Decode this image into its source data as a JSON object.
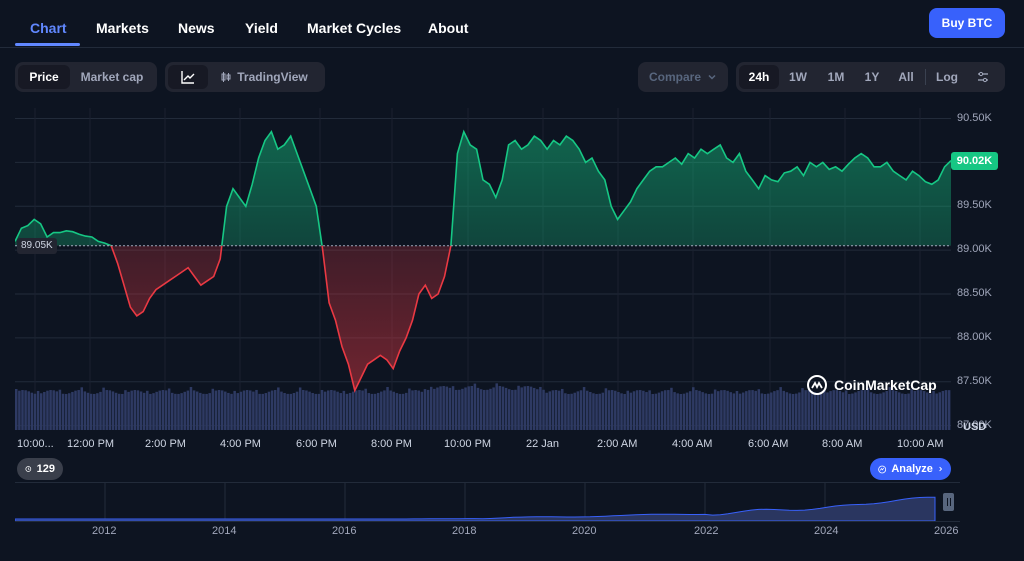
{
  "tabs": [
    {
      "label": "Chart",
      "active": true
    },
    {
      "label": "Markets",
      "active": false
    },
    {
      "label": "News",
      "active": false
    },
    {
      "label": "Yield",
      "active": false
    },
    {
      "label": "Market Cycles",
      "active": false
    },
    {
      "label": "About",
      "active": false
    }
  ],
  "buy_button": "Buy BTC",
  "type_toggle": {
    "price": "Price",
    "market_cap": "Market cap",
    "active": "Price"
  },
  "view_toggle": {
    "line_icon": "line-chart-icon",
    "tradingview": "TradingView",
    "tradingview_icon": "candlestick-icon"
  },
  "compare": {
    "label": "Compare",
    "icon": "chevron-down-icon"
  },
  "ranges": {
    "items": [
      "24h",
      "1W",
      "1M",
      "1Y",
      "All"
    ],
    "active": "24h",
    "log": "Log",
    "settings_icon": "sliders-icon"
  },
  "chart_data": {
    "type": "area",
    "title": "",
    "currency": "USD",
    "baseline": 89050,
    "baseline_label": "89.05K",
    "current": 90020,
    "current_label": "90.02K",
    "ylim": [
      86950,
      90620
    ],
    "y_ticks": [
      "90.50K",
      "90.00K",
      "89.50K",
      "89.00K",
      "88.50K",
      "88.00K",
      "87.50K",
      "87.00K"
    ],
    "x_ticks": [
      "10:00...",
      "12:00 PM",
      "2:00 PM",
      "4:00 PM",
      "6:00 PM",
      "8:00 PM",
      "10:00 PM",
      "22 Jan",
      "2:00 AM",
      "4:00 AM",
      "6:00 AM",
      "8:00 AM",
      "10:00 AM"
    ],
    "colors": {
      "up": "#16c784",
      "down": "#ea3943",
      "volume": "#2e3a63"
    },
    "series": [
      {
        "values": [
          89100,
          89250,
          89280,
          89350,
          89300,
          89150,
          89200,
          89200,
          89220,
          89210,
          89180,
          89160,
          89150,
          89100,
          89080,
          89050,
          88850,
          88600,
          88350,
          88250,
          88300,
          88450,
          88550,
          88600,
          88650,
          88700,
          88750,
          88800,
          88700,
          88600,
          88650,
          88700,
          88900,
          89500,
          89700,
          89600,
          89500,
          89750,
          90050,
          90250,
          90350,
          90150,
          90200,
          90300,
          90100,
          89900,
          89700,
          89500,
          89000,
          88400,
          88200,
          87900,
          87700,
          87400,
          87550,
          87700,
          87750,
          87800,
          87750,
          87650,
          87850,
          88000,
          88200,
          88500,
          88600,
          88450,
          88500,
          88700,
          89050,
          90100,
          90350,
          90200,
          90150,
          89800,
          89750,
          89600,
          89800,
          90200,
          90250,
          90150,
          90200,
          90300,
          90250,
          90150,
          90250,
          90200,
          90300,
          90250,
          90150,
          90000,
          90050,
          89900,
          89800,
          89500,
          89350,
          89450,
          89550,
          89700,
          89800,
          89900,
          89950,
          89950,
          90000,
          90050,
          89980,
          90100,
          90050,
          90150,
          90100,
          90150,
          90200,
          90050,
          90000,
          90100,
          89900,
          89800,
          89700,
          89850,
          89800,
          89780,
          89880,
          89900,
          89950,
          89850,
          90000,
          89950,
          90000,
          89920,
          89950,
          89900,
          89980,
          90050,
          90100,
          90050,
          89950,
          89950,
          90000,
          89900,
          89850,
          89800,
          89900,
          89850,
          89780,
          89750,
          89800,
          89950,
          90020
        ]
      }
    ]
  },
  "watermark": "CoinMarketCap",
  "history_pill": {
    "value": "129",
    "icon": "clock-history-icon"
  },
  "analyze_pill": {
    "label": "Analyze",
    "icon": "analyze-icon",
    "chevron": "chevron-right-icon"
  },
  "navigator": {
    "x_ticks": [
      "2012",
      "2014",
      "2016",
      "2018",
      "2020",
      "2022",
      "2024",
      "2026"
    ],
    "pause_icon": "pause-handle-icon"
  }
}
